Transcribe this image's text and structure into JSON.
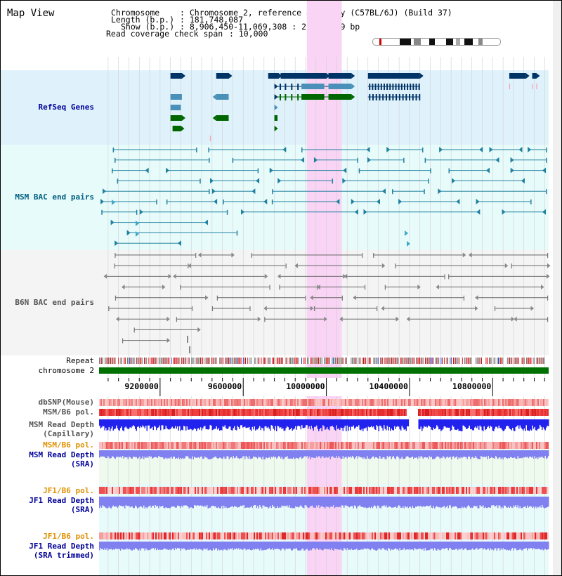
{
  "view_title": "Map View",
  "header": {
    "chromosome_label": "Chromosome",
    "chromosome_value": ": Chromosome 2, reference assembly (C57BL/6J) (Build 37)",
    "length_label": "Length (b.p.)",
    "length_value": ": 181,748,087",
    "show_label": "Show (b.p.)",
    "show_value": ": 8,906,450-11,069,308 : 2,162,859 bp",
    "coverage_label": "Read coverage check span",
    "coverage_value": ": 10,000"
  },
  "tracks": {
    "refseq": "RefSeq Genes",
    "msm_bac": "MSM BAC end pairs",
    "b6n_bac": "B6N BAC end pairs",
    "repeat": "Repeat",
    "chromosome": "chromosome 2",
    "dbsnp": "dbSNP(Mouse)",
    "msm_pol_1": "MSM/B6 pol.",
    "msm_depth_cap_1": "MSM Read Depth",
    "msm_depth_cap_2": "(Capillary)",
    "msm_pol_2": "MSM/B6 pol.",
    "msm_depth_sra_1": "MSM Read Depth",
    "msm_depth_sra_2": "(SRA)",
    "jf1_pol_1": "JF1/B6 pol.",
    "jf1_depth_sra_1": "JF1 Read Depth",
    "jf1_depth_sra_2": "(SRA)",
    "jf1_pol_2": "JF1/B6 pol.",
    "jf1_depth_trim_1": "JF1 Read Depth",
    "jf1_depth_trim_2": "(SRA trimmed)"
  },
  "axis": {
    "ticks": [
      "9200000",
      "9600000",
      "10000000",
      "10400000",
      "10800000"
    ],
    "tick_values": [
      9200000,
      9600000,
      10000000,
      10400000,
      10800000
    ],
    "range": [
      8906450,
      11069308
    ]
  },
  "highlight_range": [
    9906000,
    10074000
  ],
  "colors": {
    "refseq_bg": "#dff2fb",
    "msm_bg": "#e8fbfb",
    "b6n_bg": "#f4f4f4",
    "highlight": "#f9d4f4",
    "chromosome_bar": "#007000",
    "label_blue": "#000099",
    "label_teal": "#006080",
    "label_orange": "#e09000",
    "gene_navy": "#003366",
    "gene_steel": "#4a90b8",
    "gene_green": "#006600",
    "msm_line": "#2080a0",
    "b6n_line": "#666666",
    "depth_blue": "#2222ee",
    "depth_light": "#8080f0"
  }
}
